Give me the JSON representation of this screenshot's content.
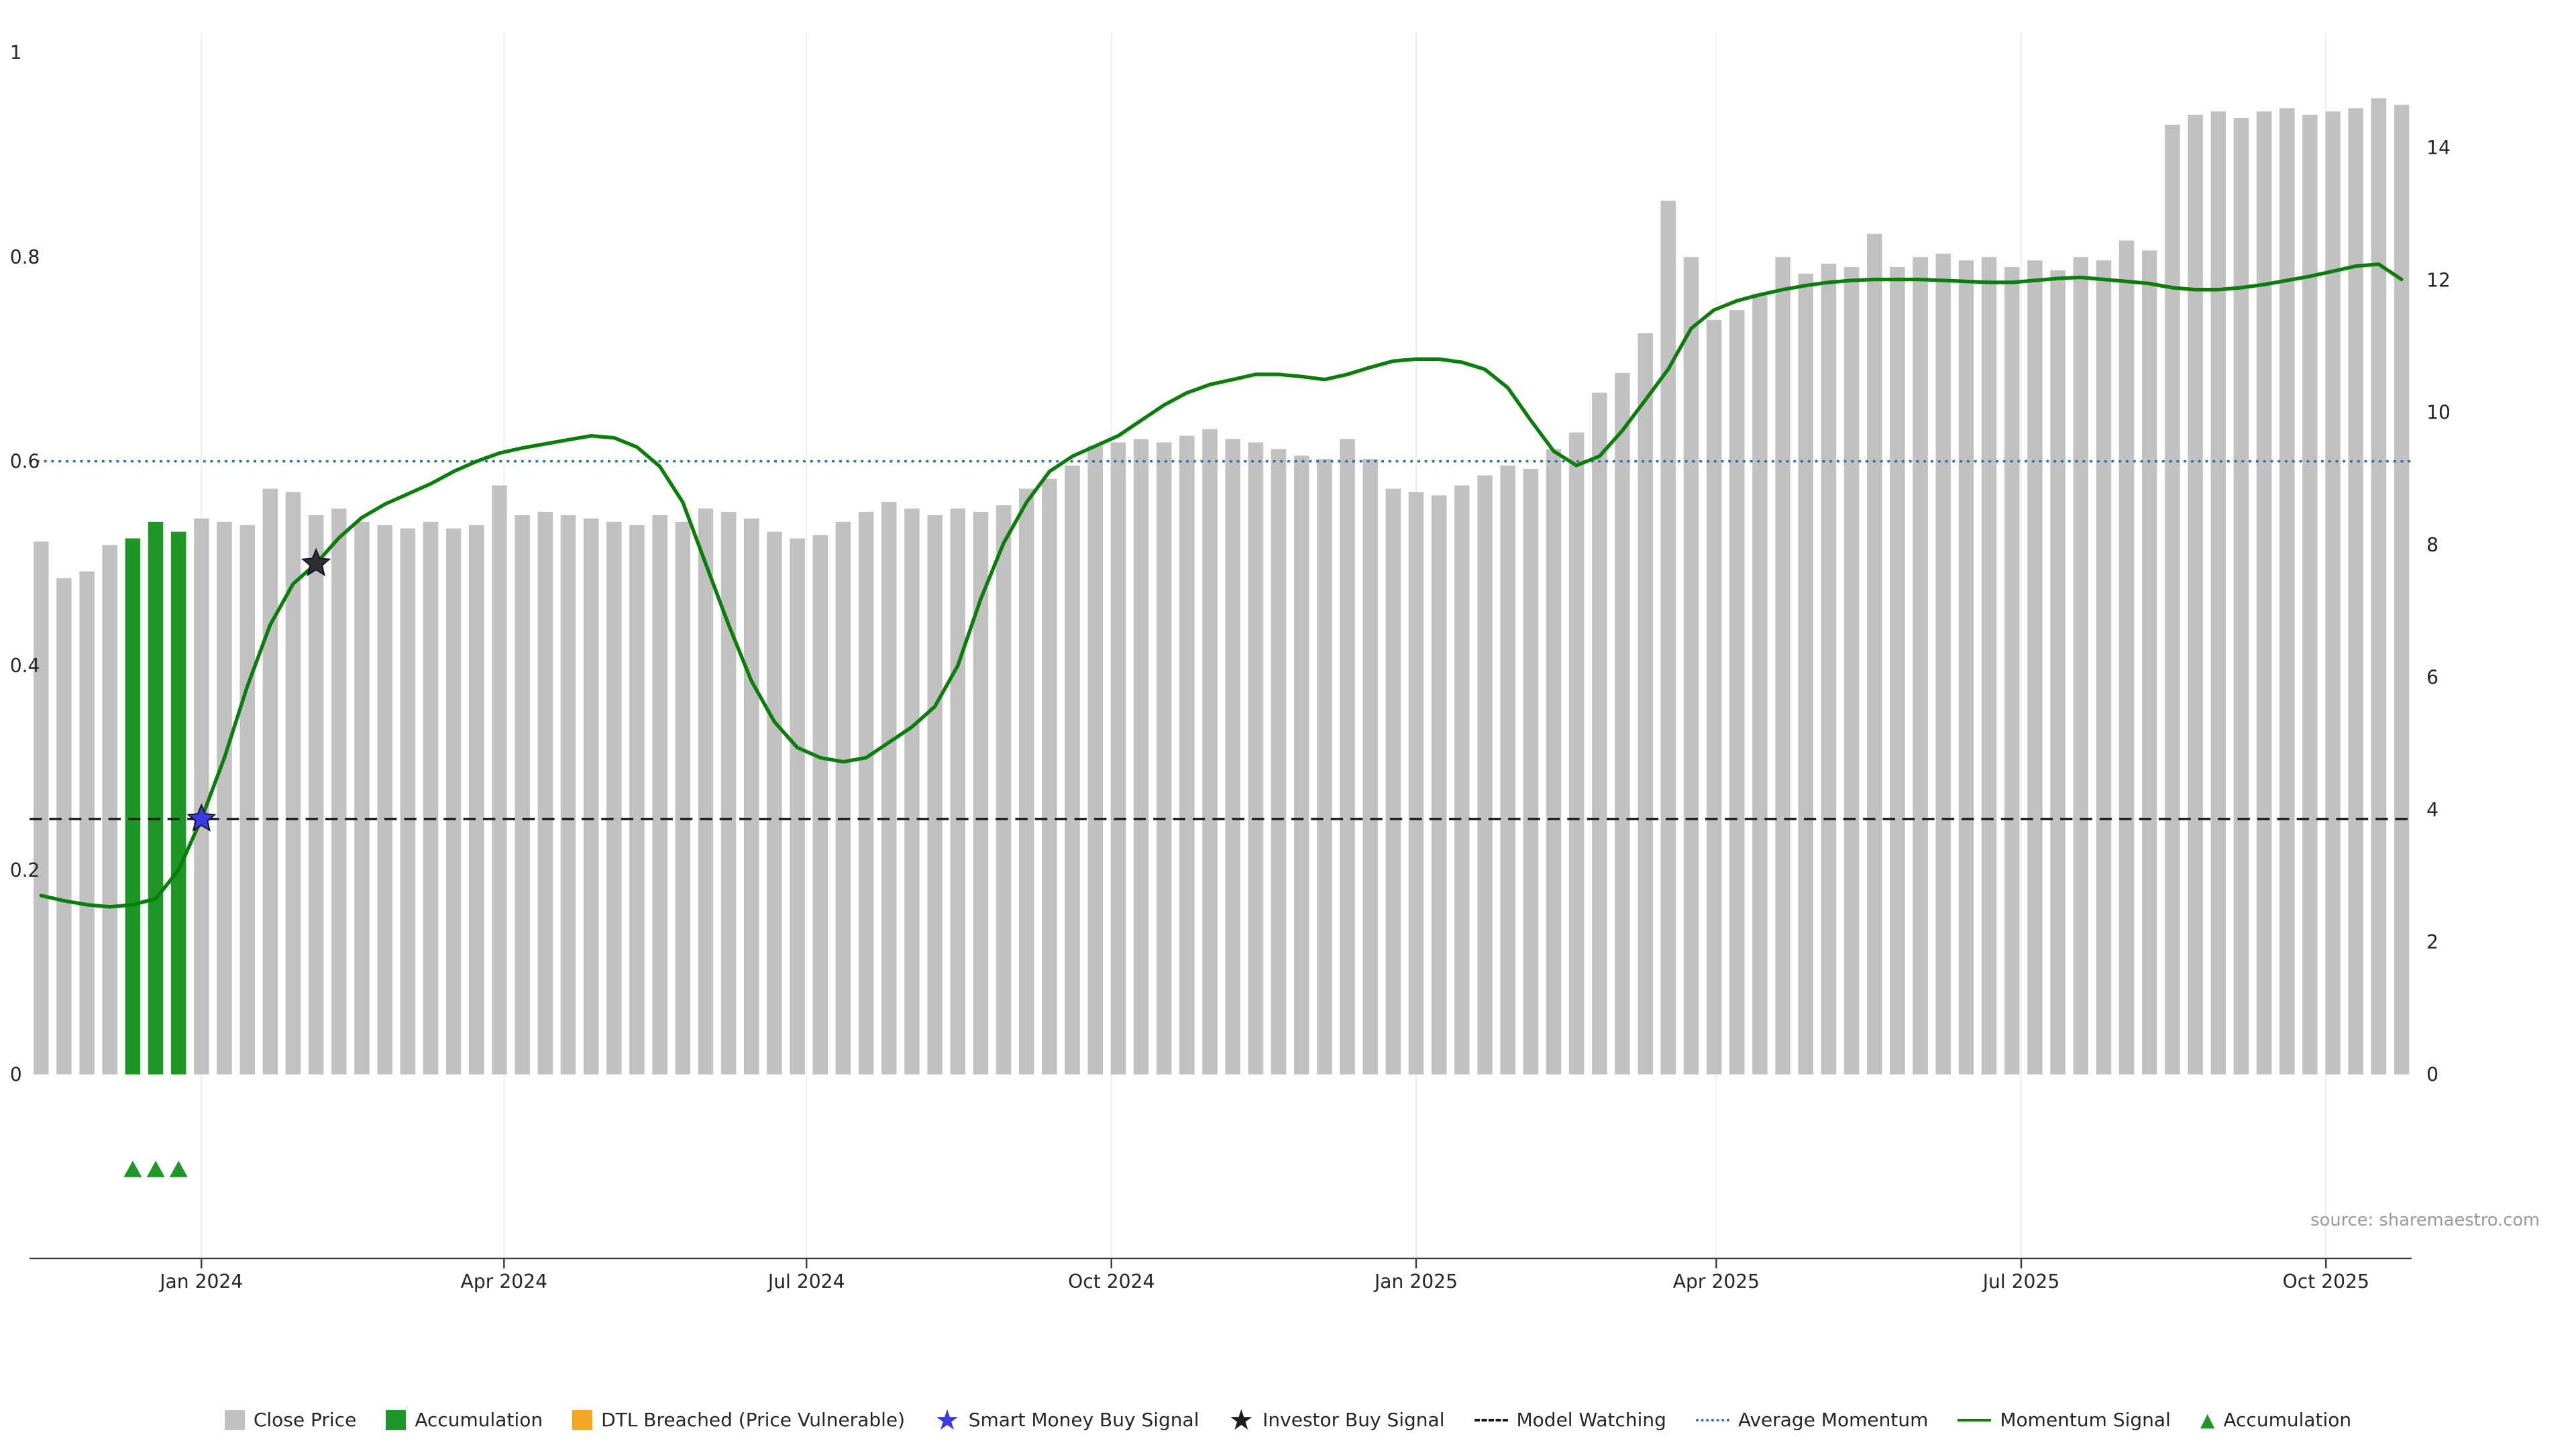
{
  "source_text": "source: sharemaestro.com",
  "legend": {
    "items": [
      {
        "label": "Close Price",
        "type": "square",
        "color": "#c1c1c1"
      },
      {
        "label": "Accumulation",
        "type": "square",
        "color": "#1e9628"
      },
      {
        "label": "DTL Breached (Price Vulnerable)",
        "type": "square",
        "color": "#f5a623"
      },
      {
        "label": "Smart Money Buy Signal",
        "type": "star",
        "color": "#3a3be0"
      },
      {
        "label": "Investor Buy Signal",
        "type": "star",
        "color": "#1c1c1c"
      },
      {
        "label": "Model Watching",
        "type": "dashed-line",
        "color": "#1a1a1a"
      },
      {
        "label": "Average Momentum",
        "type": "dotted-line",
        "color": "#2e6da4"
      },
      {
        "label": "Momentum Signal",
        "type": "line",
        "color": "#0b7d0b"
      },
      {
        "label": "Accumulation",
        "type": "triangle",
        "color": "#1e9628"
      }
    ]
  },
  "chart_data": {
    "type": "bar",
    "title": "",
    "grid": "faint-vertical",
    "legend_position": "bottom-center",
    "colors": {
      "close_price": "#c1c1c1",
      "accumulation": "#1e9628",
      "momentum": "#0b7d0b",
      "average_momentum": "#2e6da4",
      "model_watching": "#1a1a1a",
      "smart_money": "#3a3be0",
      "investor": "#2f2f2f",
      "dtl_breached": "#f5a623"
    },
    "x": {
      "unit": "week",
      "ticks": [
        {
          "label": "Jan 2024",
          "index": 7
        },
        {
          "label": "Apr 2024",
          "index": 20.2
        },
        {
          "label": "Jul 2024",
          "index": 33.4
        },
        {
          "label": "Oct 2024",
          "index": 46.7
        },
        {
          "label": "Jan 2025",
          "index": 60
        },
        {
          "label": "Apr 2025",
          "index": 73.1
        },
        {
          "label": "Jul 2025",
          "index": 86.4
        },
        {
          "label": "Oct 2025",
          "index": 99.7
        }
      ]
    },
    "price_axis": {
      "side": "right",
      "ticks": [
        0,
        2,
        4,
        6,
        8,
        10,
        12,
        14
      ],
      "range": [
        0,
        15.2
      ]
    },
    "momentum_axis": {
      "side": "left",
      "ticks": [
        0,
        0.2,
        0.4,
        0.6,
        0.8,
        1
      ],
      "range": [
        0,
        1
      ]
    },
    "series": [
      {
        "name": "Close Price",
        "type": "bar",
        "axis": "price",
        "values": [
          8.05,
          7.5,
          7.6,
          8.0,
          8.1,
          8.35,
          8.2,
          8.4,
          8.35,
          8.3,
          8.85,
          8.8,
          8.45,
          8.55,
          8.35,
          8.3,
          8.25,
          8.35,
          8.25,
          8.3,
          8.9,
          8.45,
          8.5,
          8.45,
          8.4,
          8.35,
          8.3,
          8.45,
          8.35,
          8.55,
          8.5,
          8.4,
          8.2,
          8.1,
          8.15,
          8.35,
          8.5,
          8.65,
          8.55,
          8.45,
          8.55,
          8.5,
          8.6,
          8.85,
          9.0,
          9.2,
          9.5,
          9.55,
          9.6,
          9.55,
          9.65,
          9.75,
          9.6,
          9.55,
          9.45,
          9.35,
          9.3,
          9.6,
          9.3,
          8.85,
          8.8,
          8.75,
          8.9,
          9.05,
          9.2,
          9.15,
          9.45,
          9.7,
          10.3,
          10.6,
          11.2,
          13.2,
          12.35,
          11.4,
          11.55,
          11.8,
          12.35,
          12.1,
          12.25,
          12.2,
          12.7,
          12.2,
          12.35,
          12.4,
          12.3,
          12.35,
          12.2,
          12.3,
          12.15,
          12.35,
          12.3,
          12.6,
          12.45,
          14.35,
          14.5,
          14.55,
          14.45,
          14.55,
          14.6,
          14.5,
          14.55,
          14.6,
          14.75,
          14.65
        ]
      },
      {
        "name": "Momentum Signal",
        "type": "line",
        "axis": "momentum",
        "values": [
          0.175,
          0.17,
          0.166,
          0.164,
          0.166,
          0.172,
          0.2,
          0.25,
          0.31,
          0.38,
          0.44,
          0.48,
          0.5,
          0.525,
          0.545,
          0.558,
          0.568,
          0.578,
          0.59,
          0.6,
          0.608,
          0.613,
          0.617,
          0.621,
          0.625,
          0.623,
          0.614,
          0.595,
          0.56,
          0.5,
          0.44,
          0.385,
          0.345,
          0.32,
          0.31,
          0.306,
          0.31,
          0.325,
          0.34,
          0.36,
          0.4,
          0.465,
          0.52,
          0.56,
          0.59,
          0.605,
          0.615,
          0.625,
          0.64,
          0.655,
          0.667,
          0.675,
          0.68,
          0.685,
          0.685,
          0.683,
          0.68,
          0.685,
          0.692,
          0.698,
          0.7,
          0.7,
          0.697,
          0.69,
          0.672,
          0.64,
          0.61,
          0.596,
          0.605,
          0.63,
          0.66,
          0.69,
          0.73,
          0.748,
          0.757,
          0.763,
          0.768,
          0.772,
          0.775,
          0.777,
          0.778,
          0.778,
          0.778,
          0.777,
          0.776,
          0.775,
          0.775,
          0.777,
          0.779,
          0.78,
          0.778,
          0.776,
          0.774,
          0.77,
          0.768,
          0.768,
          0.77,
          0.773,
          0.777,
          0.781,
          0.786,
          0.791,
          0.793,
          0.778
        ]
      }
    ],
    "accumulation_bar_indices": [
      4,
      5,
      6
    ],
    "reference_lines": [
      {
        "name": "Average Momentum",
        "axis": "momentum",
        "value": 0.6,
        "style": "dotted",
        "color": "#2e6da4"
      },
      {
        "name": "Model Watching",
        "axis": "momentum",
        "value": 0.25,
        "style": "dashed",
        "color": "#1a1a1a"
      }
    ],
    "markers": [
      {
        "name": "Smart Money Buy Signal",
        "shape": "star",
        "color": "#3a3be0",
        "index": 7,
        "momentum": 0.25
      },
      {
        "name": "Investor Buy Signal",
        "shape": "star",
        "color": "#2f2f2f",
        "index": 12,
        "momentum": 0.5
      },
      {
        "name": "Accumulation",
        "shape": "triangle",
        "color": "#1e9628",
        "indices": [
          4,
          5,
          6
        ]
      }
    ]
  }
}
